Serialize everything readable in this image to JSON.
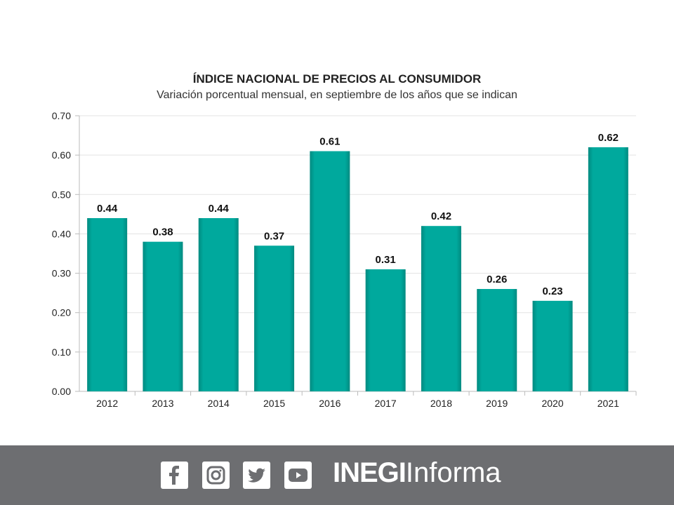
{
  "chart_data": {
    "type": "bar",
    "title": "ÍNDICE NACIONAL DE PRECIOS AL CONSUMIDOR",
    "subtitle": "Variación porcentual mensual, en septiembre de los años que se indican",
    "categories": [
      "2012",
      "2013",
      "2014",
      "2015",
      "2016",
      "2017",
      "2018",
      "2019",
      "2020",
      "2021"
    ],
    "values": [
      0.44,
      0.38,
      0.44,
      0.37,
      0.61,
      0.31,
      0.42,
      0.26,
      0.23,
      0.62
    ],
    "data_labels": [
      "0.44",
      "0.38",
      "0.44",
      "0.37",
      "0.61",
      "0.31",
      "0.42",
      "0.26",
      "0.23",
      "0.62"
    ],
    "yticks": [
      "0.00",
      "0.10",
      "0.20",
      "0.30",
      "0.40",
      "0.50",
      "0.60",
      "0.70"
    ],
    "ylim": [
      0,
      0.7
    ],
    "xlabel": "",
    "ylabel": "",
    "grid": true,
    "bar_color": "#00a99d"
  },
  "footer": {
    "icons": [
      "facebook-icon",
      "instagram-icon",
      "twitter-icon",
      "youtube-icon"
    ],
    "brand_bold": "INEGI",
    "brand_light": "Informa"
  }
}
